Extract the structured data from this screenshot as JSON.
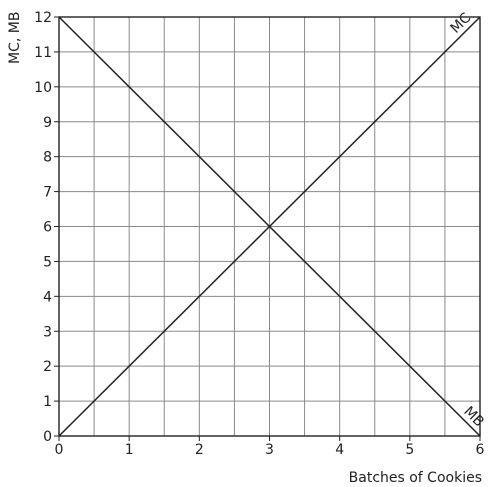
{
  "chart_data": {
    "type": "line",
    "title": "",
    "xlabel": "Batches of Cookies",
    "ylabel": "MC, MB",
    "xlim": [
      0,
      6
    ],
    "ylim": [
      0,
      12
    ],
    "x_ticks": [
      0,
      1,
      2,
      3,
      4,
      5,
      6
    ],
    "y_ticks": [
      0,
      1,
      2,
      3,
      4,
      5,
      6,
      7,
      8,
      9,
      10,
      11,
      12
    ],
    "x_gridlines_every": 0.5,
    "y_gridlines_every": 1,
    "grid": true,
    "legend": "none",
    "series": [
      {
        "name": "MC",
        "color": "#222222",
        "x": [
          0,
          6
        ],
        "y": [
          0,
          12
        ]
      },
      {
        "name": "MB",
        "color": "#222222",
        "x": [
          0,
          6
        ],
        "y": [
          12,
          0
        ]
      }
    ],
    "grid_color": "#8a8a8a",
    "axis_color": "#222222"
  }
}
